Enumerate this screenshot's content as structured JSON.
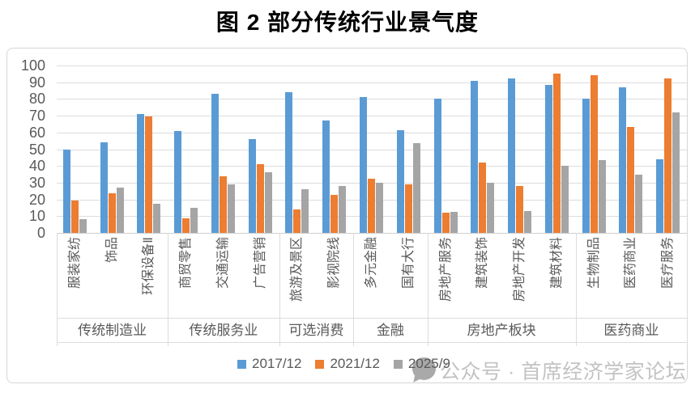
{
  "title": "图 2 部分传统行业景气度",
  "watermark": {
    "icon": "speech-bubble-icon",
    "text": "公众号 · 首席经济学家论坛"
  },
  "colors": {
    "series": [
      "#5B9BD5",
      "#ED7D31",
      "#A5A5A5"
    ],
    "gridline": "#dcdcdc",
    "axis_label": "#595959",
    "frame_border": "#d6d6d6",
    "watermark_text": "#c3c3c3"
  },
  "chart_data": {
    "type": "bar",
    "title": "图 2 部分传统行业景气度",
    "xlabel": "",
    "ylabel": "",
    "ylim": [
      0,
      100
    ],
    "ytick_step": 10,
    "grid": true,
    "legend_position": "bottom",
    "categories": [
      "服装家纺",
      "饰品",
      "环保设备Ⅱ",
      "商贸零售",
      "交通运输",
      "广告营销",
      "旅游及景区",
      "影视院线",
      "多元金融",
      "国有大行",
      "房地产服务",
      "建筑装饰",
      "房地产开发",
      "建筑材料",
      "生物制品",
      "医药商业",
      "医疗服务"
    ],
    "groups": [
      {
        "label": "传统制造业",
        "span": 3
      },
      {
        "label": "传统服务业",
        "span": 3
      },
      {
        "label": "可选消费",
        "span": 2
      },
      {
        "label": "金融",
        "span": 2
      },
      {
        "label": "房地产板块",
        "span": 4
      },
      {
        "label": "医药商业",
        "span": 3
      }
    ],
    "series": [
      {
        "name": "2017/12",
        "color": "#5B9BD5",
        "values": [
          50,
          54,
          71,
          61,
          83,
          56,
          84,
          67,
          81,
          61.5,
          80,
          91,
          92.5,
          88.5,
          80,
          87,
          44
        ]
      },
      {
        "name": "2021/12",
        "color": "#ED7D31",
        "values": [
          19.5,
          23.5,
          69.5,
          8.5,
          34,
          41,
          14,
          22.5,
          32.5,
          29,
          12,
          42,
          28,
          95,
          94,
          63.5,
          92.5
        ]
      },
      {
        "name": "2025/9",
        "color": "#A5A5A5",
        "values": [
          8,
          27,
          17.5,
          15,
          29,
          36,
          26,
          28,
          30,
          53.5,
          12.5,
          30,
          13,
          40,
          43.5,
          35,
          72
        ]
      }
    ]
  }
}
